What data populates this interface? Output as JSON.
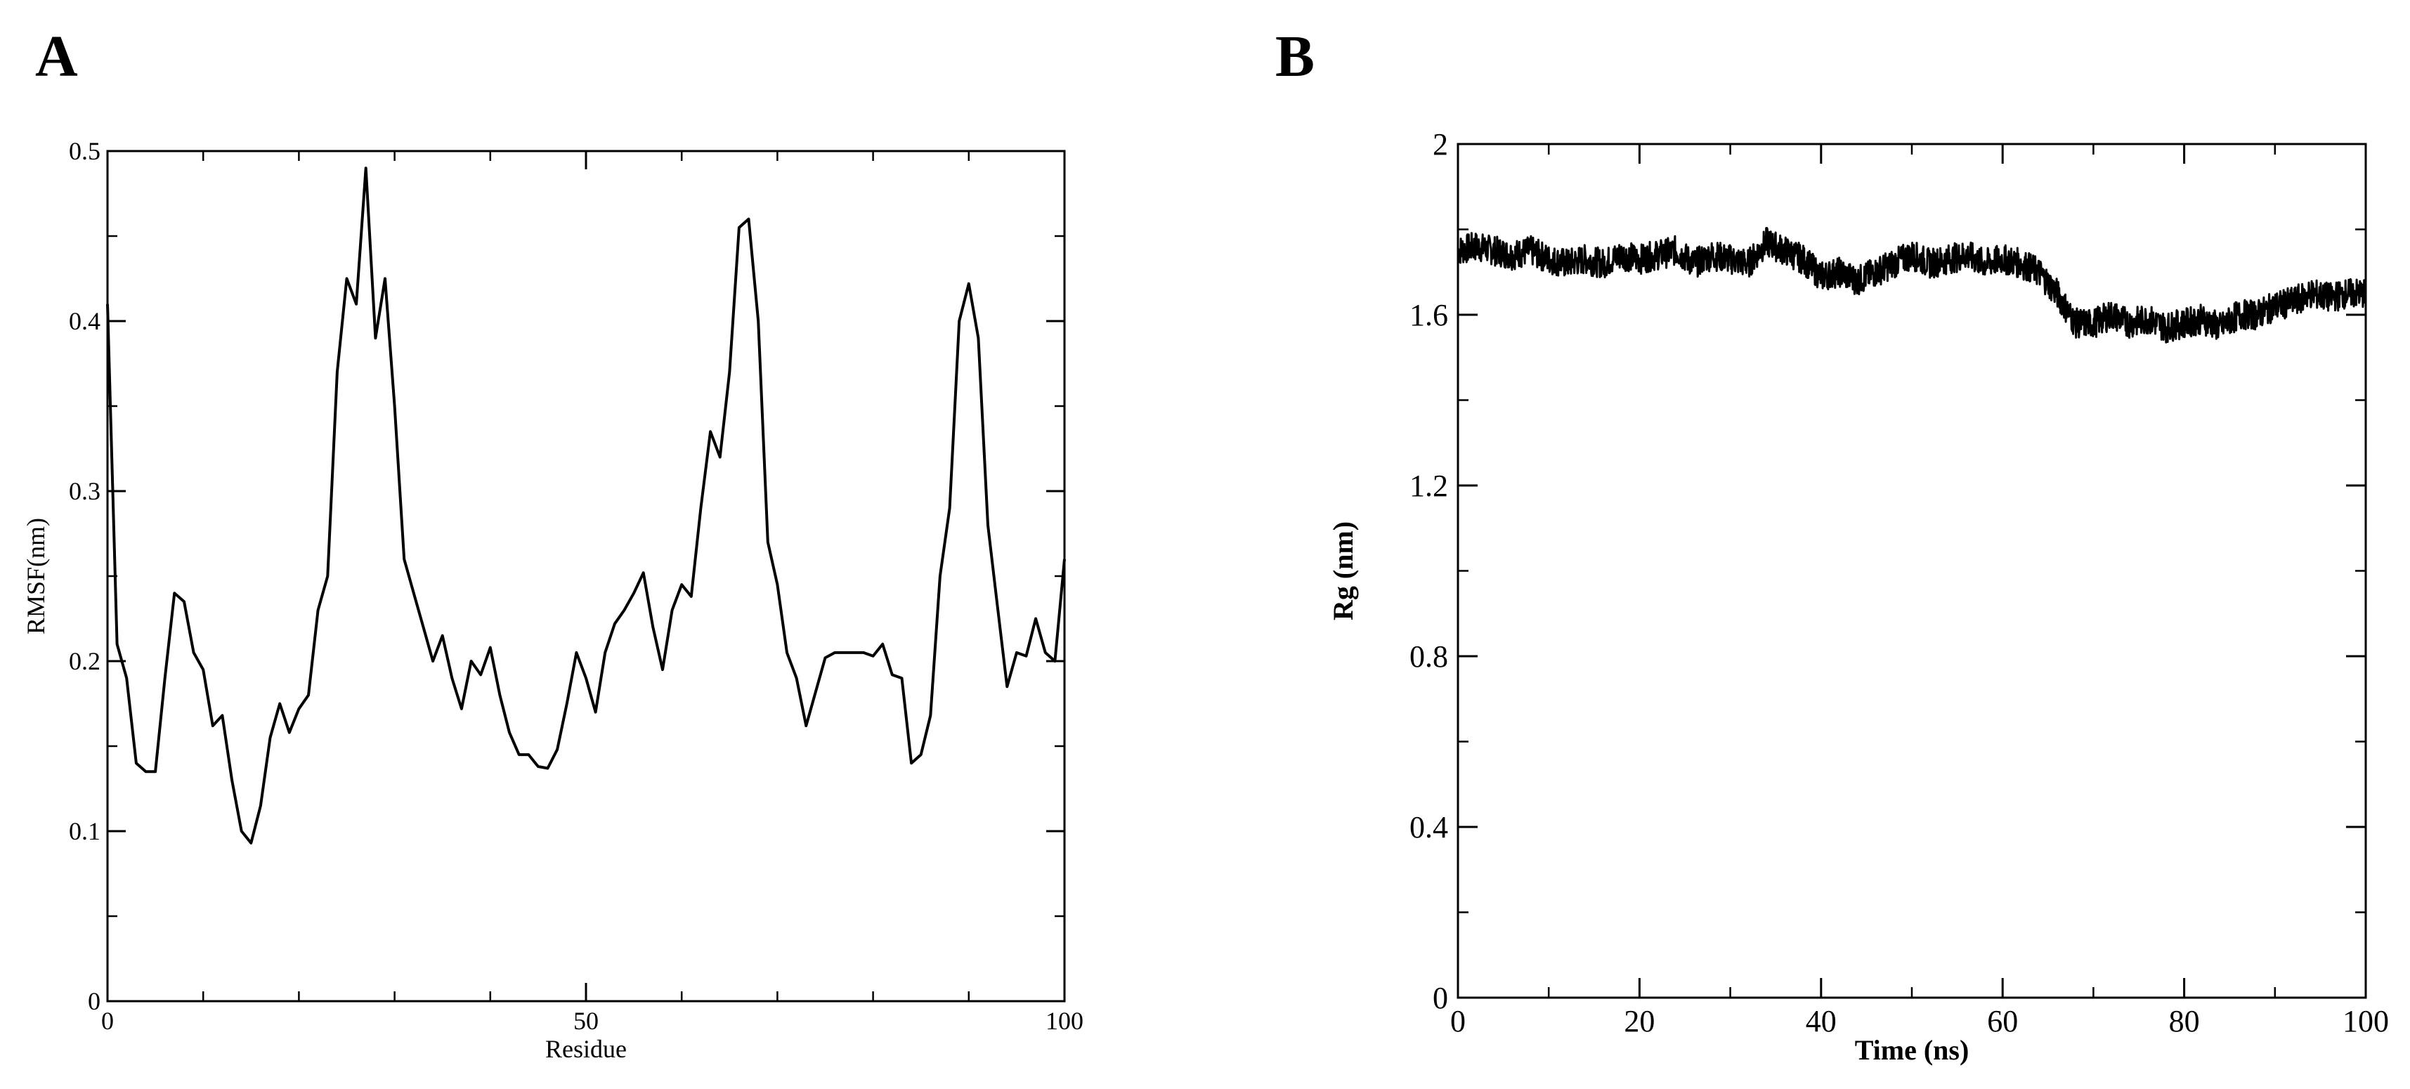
{
  "chart_data": [
    {
      "panel": "A",
      "type": "line",
      "title": "",
      "xlabel": "Residue",
      "ylabel": "RMSF(nm)",
      "xlim": [
        0,
        100
      ],
      "ylim": [
        0,
        0.5
      ],
      "xticks": [
        "0",
        "50",
        "100"
      ],
      "yticks": [
        "0",
        "0.1",
        "0.2",
        "0.3",
        "0.4",
        "0.5"
      ],
      "grid": false,
      "legend": "none",
      "color": "#000000",
      "series": [
        {
          "x": [
            0,
            1,
            2,
            3,
            4,
            5,
            6,
            7,
            8,
            9,
            10,
            11,
            12,
            13,
            14,
            15,
            16,
            17,
            18,
            19,
            20,
            21,
            22,
            23,
            24,
            25,
            26,
            27,
            28,
            29,
            30,
            31,
            32,
            33,
            34,
            35,
            36,
            37,
            38,
            39,
            40,
            41,
            42,
            43,
            44,
            45,
            46,
            47,
            48,
            49,
            50,
            51,
            52,
            53,
            54,
            55,
            56,
            57,
            58,
            59,
            60,
            61,
            62,
            63,
            64,
            65,
            66,
            67,
            68,
            69,
            70,
            71,
            72,
            73,
            74,
            75,
            76,
            77,
            78,
            79,
            80,
            81,
            82,
            83,
            84,
            85,
            86,
            87,
            88,
            89,
            90,
            91,
            92,
            93,
            94,
            95,
            96,
            97,
            98,
            99,
            100
          ],
          "values": [
            0.41,
            0.21,
            0.19,
            0.14,
            0.135,
            0.135,
            0.19,
            0.24,
            0.235,
            0.205,
            0.195,
            0.162,
            0.168,
            0.13,
            0.1,
            0.093,
            0.115,
            0.155,
            0.175,
            0.158,
            0.172,
            0.18,
            0.23,
            0.25,
            0.37,
            0.425,
            0.41,
            0.49,
            0.39,
            0.425,
            0.35,
            0.26,
            0.24,
            0.22,
            0.2,
            0.215,
            0.19,
            0.172,
            0.2,
            0.192,
            0.208,
            0.18,
            0.158,
            0.145,
            0.145,
            0.138,
            0.137,
            0.148,
            0.175,
            0.205,
            0.19,
            0.17,
            0.205,
            0.222,
            0.23,
            0.24,
            0.252,
            0.22,
            0.195,
            0.23,
            0.245,
            0.238,
            0.29,
            0.335,
            0.32,
            0.37,
            0.455,
            0.46,
            0.4,
            0.27,
            0.245,
            0.205,
            0.19,
            0.162,
            0.182,
            0.202,
            0.205,
            0.205,
            0.205,
            0.205,
            0.203,
            0.21,
            0.192,
            0.19,
            0.14,
            0.145,
            0.168,
            0.25,
            0.29,
            0.4,
            0.422,
            0.39,
            0.28,
            0.232,
            0.185,
            0.205,
            0.203,
            0.225,
            0.205,
            0.2,
            0.26
          ]
        }
      ]
    },
    {
      "panel": "B",
      "type": "line",
      "title": "",
      "xlabel": "Time (ns)",
      "ylabel": "Rg (nm)",
      "xlim": [
        0,
        100
      ],
      "ylim": [
        0,
        2
      ],
      "xticks": [
        "0",
        "20",
        "40",
        "60",
        "80",
        "100"
      ],
      "yticks": [
        "0",
        "0.4",
        "0.8",
        "1.2",
        "1.6",
        "2"
      ],
      "grid": false,
      "legend": "none",
      "color": "#000000",
      "series": [
        {
          "x": [
            0,
            2,
            4,
            6,
            8,
            10,
            12,
            14,
            16,
            18,
            20,
            22,
            24,
            26,
            28,
            30,
            32,
            34,
            36,
            38,
            40,
            42,
            44,
            46,
            48,
            50,
            52,
            54,
            56,
            58,
            60,
            62,
            64,
            66,
            68,
            70,
            72,
            74,
            76,
            78,
            80,
            82,
            84,
            86,
            88,
            90,
            92,
            94,
            96,
            98,
            100
          ],
          "values": [
            1.75,
            1.76,
            1.75,
            1.74,
            1.75,
            1.73,
            1.72,
            1.73,
            1.72,
            1.74,
            1.73,
            1.74,
            1.75,
            1.72,
            1.74,
            1.73,
            1.72,
            1.77,
            1.75,
            1.73,
            1.69,
            1.7,
            1.68,
            1.7,
            1.72,
            1.74,
            1.72,
            1.73,
            1.74,
            1.72,
            1.73,
            1.72,
            1.7,
            1.65,
            1.58,
            1.58,
            1.6,
            1.58,
            1.59,
            1.57,
            1.58,
            1.59,
            1.57,
            1.6,
            1.6,
            1.62,
            1.63,
            1.65,
            1.64,
            1.65,
            1.65
          ],
          "noise_amplitude": 0.035
        }
      ]
    }
  ],
  "panels": {
    "a": {
      "label": "A"
    },
    "b": {
      "label": "B"
    }
  }
}
